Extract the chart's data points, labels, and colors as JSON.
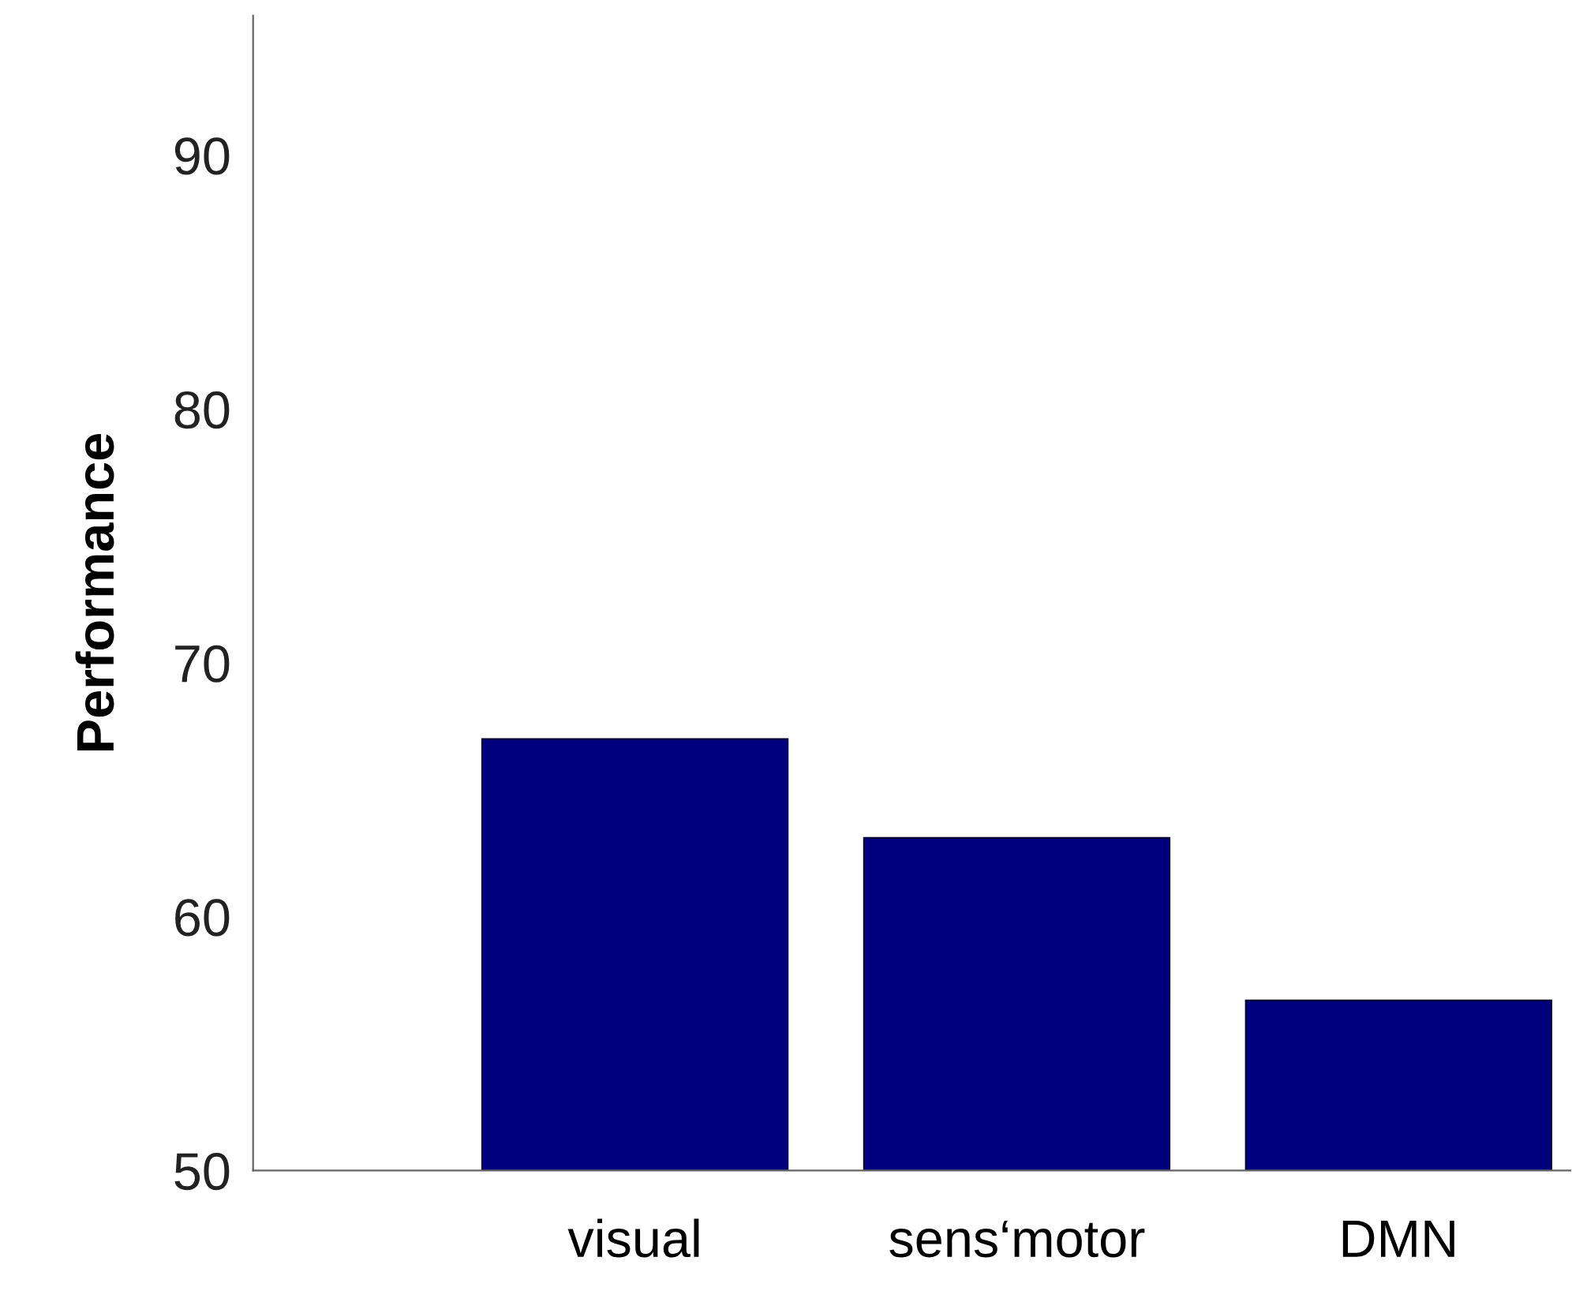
{
  "chart_data": {
    "type": "bar",
    "ylabel": "Performance",
    "categories": [
      "visual",
      "sens‘motor",
      "DMN"
    ],
    "values": [
      67,
      63.1,
      56.7
    ],
    "color": "#00007f",
    "ylim": [
      50,
      95.5
    ],
    "yticks": [
      50,
      60,
      70,
      80,
      90
    ],
    "grid": false
  }
}
